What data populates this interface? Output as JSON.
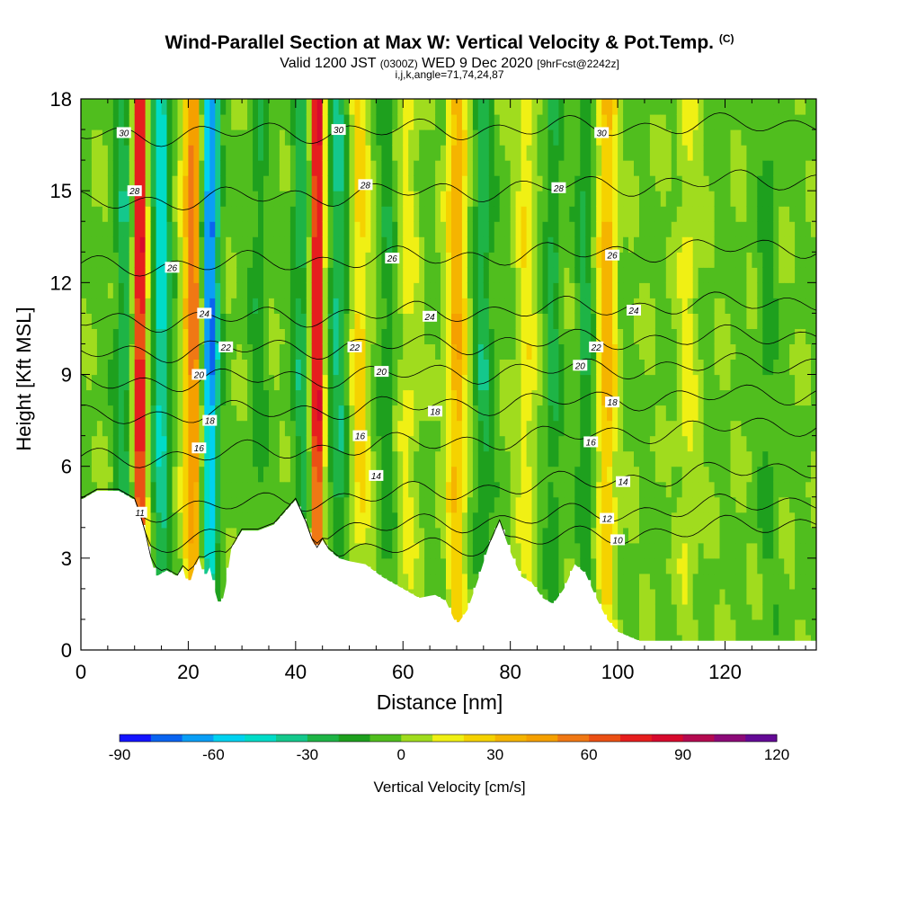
{
  "title": {
    "main": "Wind-Parallel Section at Max W: Vertical Velocity & Pot.Temp.",
    "copyright": "(C)",
    "valid_prefix": "Valid 1200 JST",
    "valid_utc": "(0300Z)",
    "valid_date": "WED 9 Dec 2020",
    "forecast": "[9hrFcst@2242z]",
    "indices": "i,j,k,angle=71,74,24,87"
  },
  "chart_data": {
    "type": "heatmap",
    "xlabel": "Distance [nm]",
    "ylabel": "Height [Kft MSL]",
    "xlim": [
      0,
      137
    ],
    "ylim": [
      0,
      18
    ],
    "x_ticks": [
      0,
      20,
      40,
      60,
      80,
      100,
      120
    ],
    "y_ticks": [
      0,
      3,
      6,
      9,
      12,
      15,
      18
    ],
    "colorbar": {
      "label": "Vertical Velocity [cm/s]",
      "min": -90,
      "max": 120,
      "step": 10,
      "tick_labels": [
        -90,
        -60,
        -30,
        0,
        30,
        60,
        90,
        120
      ],
      "colors": [
        "#1414ff",
        "#0a64f0",
        "#0a9ef5",
        "#00d2f0",
        "#00dcc8",
        "#14c88c",
        "#1eb446",
        "#1ea01e",
        "#50be1e",
        "#a0dc1e",
        "#f0f014",
        "#f5d200",
        "#f5b400",
        "#f5a000",
        "#f07814",
        "#eb5014",
        "#e61e1e",
        "#d70a2d",
        "#b40a50",
        "#8c0a78",
        "#640a96"
      ]
    },
    "updraft_bands": [
      {
        "x": 11,
        "peak_cm_s": 95,
        "top_kft": 18
      },
      {
        "x": 21,
        "peak_cm_s": 60,
        "top_kft": 18
      },
      {
        "x": 44,
        "peak_cm_s": 95,
        "top_kft": 18
      },
      {
        "x": 52,
        "peak_cm_s": 25,
        "top_kft": 18
      },
      {
        "x": 61,
        "peak_cm_s": 15,
        "top_kft": 18
      },
      {
        "x": 70,
        "peak_cm_s": 40,
        "top_kft": 18
      },
      {
        "x": 83,
        "peak_cm_s": 20,
        "top_kft": 18
      },
      {
        "x": 98,
        "peak_cm_s": 35,
        "top_kft": 18
      },
      {
        "x": 113,
        "peak_cm_s": 15,
        "top_kft": 18
      }
    ],
    "downdraft_bands": [
      {
        "x": 8,
        "peak_cm_s": -25
      },
      {
        "x": 15,
        "peak_cm_s": -45
      },
      {
        "x": 24,
        "peak_cm_s": -75
      },
      {
        "x": 33,
        "peak_cm_s": -15
      },
      {
        "x": 41,
        "peak_cm_s": -25
      },
      {
        "x": 48,
        "peak_cm_s": -30
      },
      {
        "x": 57,
        "peak_cm_s": -15
      },
      {
        "x": 75,
        "peak_cm_s": -25
      },
      {
        "x": 88,
        "peak_cm_s": -20
      },
      {
        "x": 94,
        "peak_cm_s": -20
      },
      {
        "x": 128,
        "peak_cm_s": -12
      }
    ],
    "terrain_kft": {
      "x": [
        0,
        3,
        7,
        10,
        11,
        12,
        13,
        14,
        16,
        18,
        19,
        20,
        21,
        22,
        23,
        24,
        25,
        26,
        27,
        28,
        30,
        33,
        36,
        38,
        40,
        41,
        42,
        43,
        44,
        45,
        46,
        48,
        50,
        53,
        56,
        60,
        63,
        66,
        68,
        70,
        72,
        74,
        76,
        78,
        80,
        82,
        84,
        86,
        88,
        90,
        92,
        94,
        96,
        98,
        100,
        104,
        108,
        112,
        116,
        120,
        125,
        130,
        137
      ],
      "h": [
        4.9,
        5.2,
        5.2,
        4.9,
        4.4,
        3.8,
        3.0,
        2.4,
        2.6,
        2.4,
        2.7,
        2.0,
        2.6,
        3.0,
        2.3,
        2.7,
        1.9,
        1.3,
        2.1,
        3.3,
        3.9,
        3.9,
        4.1,
        4.5,
        4.9,
        4.5,
        4.1,
        3.6,
        3.3,
        3.6,
        3.3,
        3.0,
        2.9,
        2.8,
        2.4,
        2.0,
        1.7,
        1.8,
        1.6,
        0.8,
        1.3,
        2.3,
        3.4,
        4.2,
        3.2,
        2.4,
        2.2,
        1.7,
        1.5,
        2.0,
        2.8,
        2.5,
        1.7,
        1.0,
        0.6,
        0.3,
        0.3,
        0.3,
        0.3,
        0.3,
        0.3,
        0.3,
        0.3
      ]
    },
    "theta_contours": [
      {
        "label": "10",
        "y_left": 2.6,
        "y_right": 4.2,
        "label_at": [
          100,
          3.6
        ]
      },
      {
        "label": "12",
        "y_left": 3.4,
        "y_right": 4.9,
        "label_at": [
          98,
          4.3
        ]
      },
      {
        "label": "14",
        "y_left": 4.4,
        "y_right": 6.0,
        "label_at": [
          103,
          5.5
        ]
      },
      {
        "label": "16",
        "y_left": 6.2,
        "y_right": 7.4,
        "label_at": [
          96,
          6.8
        ]
      },
      {
        "label": "18",
        "y_left": 7.6,
        "y_right": 8.4,
        "label_at": [
          100,
          8.3
        ]
      },
      {
        "label": "20",
        "y_left": 8.7,
        "y_right": 9.4,
        "label_at": [
          94,
          9.3
        ]
      },
      {
        "label": "22",
        "y_left": 9.7,
        "y_right": 10.3,
        "label_at": [
          97,
          9.9
        ]
      },
      {
        "label": "24",
        "y_left": 10.7,
        "y_right": 11.4,
        "label_at": [
          103,
          11.1
        ]
      },
      {
        "label": "26",
        "y_left": 12.5,
        "y_right": 13.2,
        "label_at": [
          99,
          12.9
        ]
      },
      {
        "label": "28",
        "y_left": 14.6,
        "y_right": 15.4,
        "label_at": [
          89,
          15.1
        ]
      },
      {
        "label": "30",
        "y_left": 16.8,
        "y_right": 17.2,
        "label_at": [
          97,
          16.9
        ]
      }
    ],
    "contour_labels": [
      {
        "text": "30",
        "x": 8,
        "y": 16.9
      },
      {
        "text": "28",
        "x": 10,
        "y": 15.0
      },
      {
        "text": "26",
        "x": 17,
        "y": 12.5
      },
      {
        "text": "24",
        "x": 23,
        "y": 11.0
      },
      {
        "text": "22",
        "x": 27,
        "y": 9.9
      },
      {
        "text": "20",
        "x": 22,
        "y": 9.0
      },
      {
        "text": "18",
        "x": 24,
        "y": 7.5
      },
      {
        "text": "16",
        "x": 22,
        "y": 6.6
      },
      {
        "text": "11",
        "x": 11,
        "y": 4.5
      },
      {
        "text": "30",
        "x": 48,
        "y": 17.0
      },
      {
        "text": "28",
        "x": 53,
        "y": 15.2
      },
      {
        "text": "26",
        "x": 58,
        "y": 12.8
      },
      {
        "text": "24",
        "x": 65,
        "y": 10.9
      },
      {
        "text": "22",
        "x": 51,
        "y": 9.9
      },
      {
        "text": "20",
        "x": 56,
        "y": 9.1
      },
      {
        "text": "18",
        "x": 66,
        "y": 7.8
      },
      {
        "text": "16",
        "x": 52,
        "y": 7.0
      },
      {
        "text": "14",
        "x": 55,
        "y": 5.7
      },
      {
        "text": "30",
        "x": 97,
        "y": 16.9
      },
      {
        "text": "28",
        "x": 89,
        "y": 15.1
      },
      {
        "text": "26",
        "x": 99,
        "y": 12.9
      },
      {
        "text": "24",
        "x": 103,
        "y": 11.1
      },
      {
        "text": "22",
        "x": 96,
        "y": 9.9
      },
      {
        "text": "20",
        "x": 93,
        "y": 9.3
      },
      {
        "text": "18",
        "x": 99,
        "y": 8.1
      },
      {
        "text": "16",
        "x": 95,
        "y": 6.8
      },
      {
        "text": "14",
        "x": 101,
        "y": 5.5
      },
      {
        "text": "12",
        "x": 98,
        "y": 4.3
      },
      {
        "text": "10",
        "x": 100,
        "y": 3.6
      }
    ]
  }
}
